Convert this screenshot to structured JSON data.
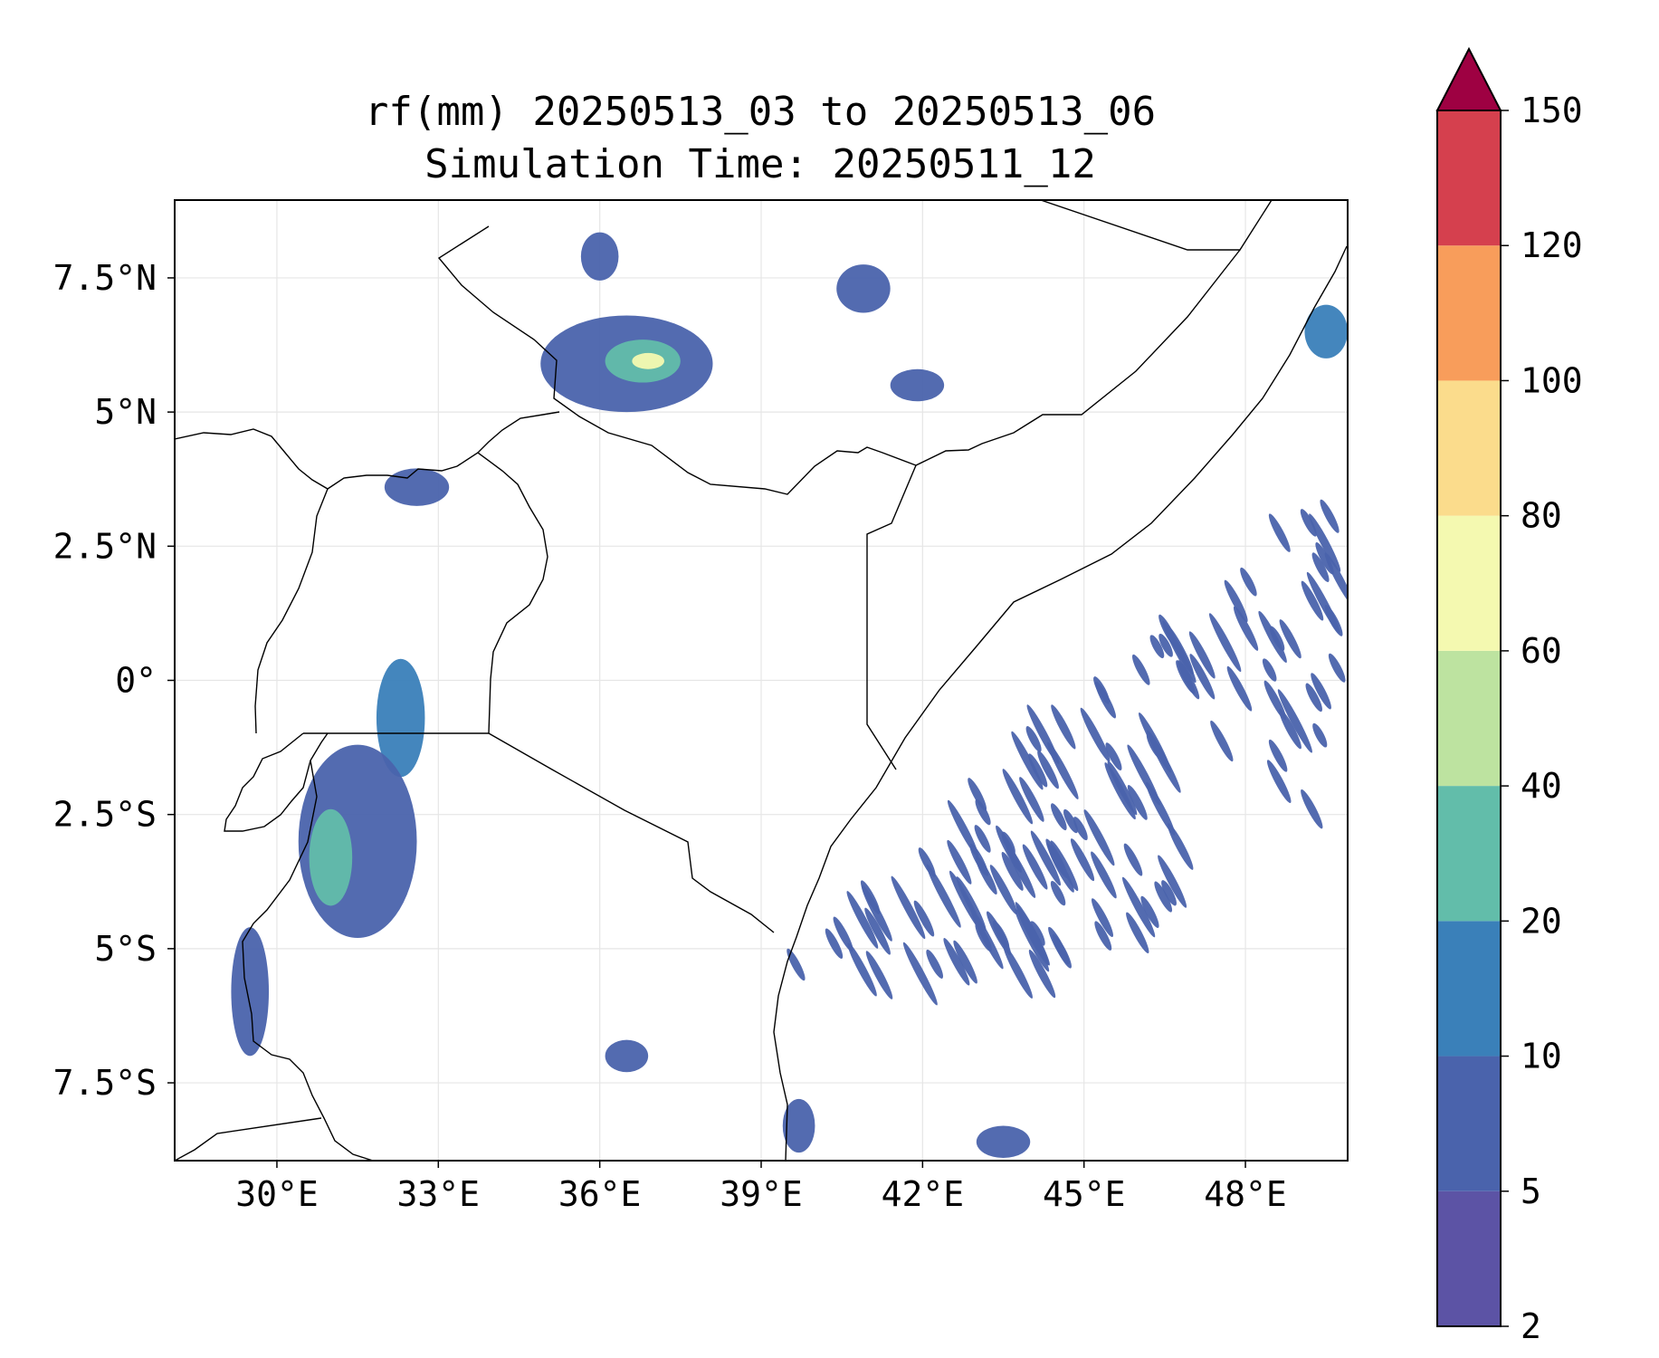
{
  "title_line1": "rf(mm) 20250513_03 to 20250513_06",
  "title_line2": "Simulation Time: 20250511_12",
  "map": {
    "lon_range": [
      28.1,
      49.9
    ],
    "lat_range": [
      -8.95,
      8.95
    ],
    "x_ticks": [
      {
        "value": 30,
        "label": "30°E"
      },
      {
        "value": 33,
        "label": "33°E"
      },
      {
        "value": 36,
        "label": "36°E"
      },
      {
        "value": 39,
        "label": "39°E"
      },
      {
        "value": 42,
        "label": "42°E"
      },
      {
        "value": 45,
        "label": "45°E"
      },
      {
        "value": 48,
        "label": "48°E"
      }
    ],
    "y_ticks": [
      {
        "value": 7.5,
        "label": "7.5°N"
      },
      {
        "value": 5,
        "label": "5°N"
      },
      {
        "value": 2.5,
        "label": "2.5°N"
      },
      {
        "value": 0,
        "label": "0°"
      },
      {
        "value": -2.5,
        "label": "2.5°S"
      },
      {
        "value": -5,
        "label": "5°S"
      },
      {
        "value": -7.5,
        "label": "7.5°S"
      }
    ],
    "grid": true
  },
  "colorbar": {
    "levels": [
      "2",
      "5",
      "10",
      "20",
      "40",
      "60",
      "80",
      "100",
      "120",
      "150"
    ],
    "colors": [
      "#5c53a5",
      "#4a63ac",
      "#3a80b9",
      "#62bdaa",
      "#bde3a0",
      "#f4f9b0",
      "#fbdc8c",
      "#f89d5b",
      "#d5404e"
    ],
    "extend_color": "#9e0142"
  },
  "chart_data": {
    "type": "heatmap",
    "variable": "rf(mm)",
    "period": "20250513_03 to 20250513_06",
    "simulation_time": "20250511_12",
    "levels": [
      2,
      5,
      10,
      20,
      40,
      60,
      80,
      100,
      120,
      150
    ],
    "rain_areas": [
      {
        "lon": 36.5,
        "lat": 5.9,
        "rx": 1.6,
        "ry": 0.9,
        "level": 1
      },
      {
        "lon": 36.8,
        "lat": 5.95,
        "rx": 0.7,
        "ry": 0.4,
        "level": 3
      },
      {
        "lon": 36.9,
        "lat": 5.95,
        "rx": 0.3,
        "ry": 0.15,
        "level": 5
      },
      {
        "lon": 36.0,
        "lat": 7.9,
        "rx": 0.35,
        "ry": 0.45,
        "level": 1
      },
      {
        "lon": 41.9,
        "lat": 5.5,
        "rx": 0.5,
        "ry": 0.3,
        "level": 1
      },
      {
        "lon": 40.9,
        "lat": 7.3,
        "rx": 0.5,
        "ry": 0.45,
        "level": 1
      },
      {
        "lon": 32.6,
        "lat": 3.6,
        "rx": 0.6,
        "ry": 0.35,
        "level": 1
      },
      {
        "lon": 32.3,
        "lat": -0.7,
        "rx": 0.45,
        "ry": 1.1,
        "level": 2
      },
      {
        "lon": 31.5,
        "lat": -3.0,
        "rx": 1.1,
        "ry": 1.8,
        "level": 1
      },
      {
        "lon": 31.0,
        "lat": -3.3,
        "rx": 0.4,
        "ry": 0.9,
        "level": 3
      },
      {
        "lon": 29.5,
        "lat": -5.8,
        "rx": 0.35,
        "ry": 1.2,
        "level": 1
      },
      {
        "lon": 49.5,
        "lat": 6.5,
        "rx": 0.4,
        "ry": 0.5,
        "level": 2
      },
      {
        "lon": 36.5,
        "lat": -7.0,
        "rx": 0.4,
        "ry": 0.3,
        "level": 1
      },
      {
        "lon": 39.7,
        "lat": -8.3,
        "rx": 0.3,
        "ry": 0.5,
        "level": 1
      },
      {
        "lon": 43.5,
        "lat": -8.6,
        "rx": 0.5,
        "ry": 0.3,
        "level": 1
      }
    ],
    "streak_field": {
      "lon_range": [
        39.5,
        49.8
      ],
      "lat_range": [
        -5.5,
        3.2
      ],
      "level": 1
    }
  }
}
